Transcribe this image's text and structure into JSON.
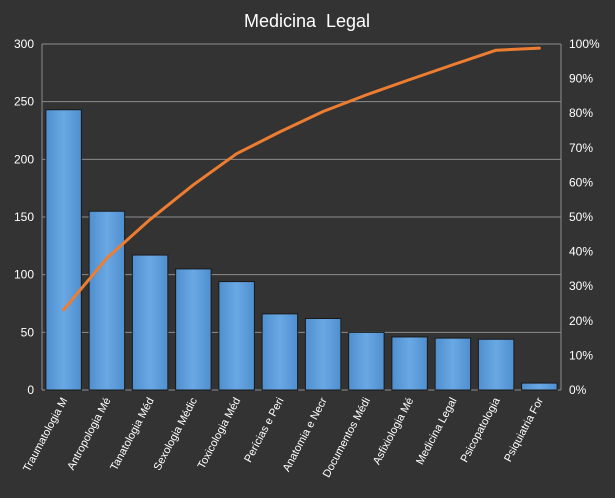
{
  "chart_data": {
    "type": "bar",
    "title": "Medicina  Legal",
    "categories": [
      "Traumatologia M",
      "Antropologia Mé",
      "Tanatologia Méd",
      "Sexologia Médic",
      "Toxicologia Méd",
      "Perícias e Peri",
      "Anatomia e Necr",
      "Documentos Médi",
      "Asfixiologia Mé",
      "Medicina Legal",
      "Psicopatologia",
      "Psiquiatria For"
    ],
    "values": [
      243,
      155,
      117,
      105,
      94,
      66,
      62,
      50,
      46,
      45,
      44,
      6
    ],
    "cumulative_percent": [
      23.2,
      38.1,
      49.3,
      59.3,
      68.3,
      74.6,
      80.5,
      85.3,
      89.7,
      94.0,
      98.2,
      98.8
    ],
    "ylim": [
      0,
      300
    ],
    "yticks": [
      "0",
      "50",
      "100",
      "150",
      "200",
      "250",
      "300"
    ],
    "y2lim": [
      0,
      100
    ],
    "y2ticks": [
      "0%",
      "10%",
      "20%",
      "30%",
      "40%",
      "50%",
      "60%",
      "70%",
      "80%",
      "90%",
      "100%"
    ],
    "grid": true,
    "legend": "none",
    "colors": {
      "background": "#333333",
      "bar_fill": "#5b9bd5",
      "bar_fill_light": "#6fa8e0",
      "bar_stroke": "#1a1a1a",
      "line": "#ed7d31",
      "grid": "#8c8c8c",
      "text": "#ffffff"
    }
  }
}
